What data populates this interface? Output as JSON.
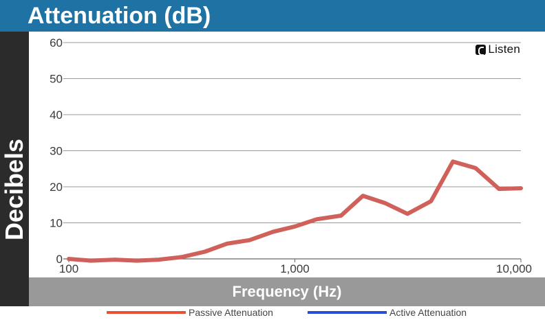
{
  "header": {
    "title": "Attenuation (dB)"
  },
  "brand": {
    "name": "Listen"
  },
  "chart_data": {
    "type": "line",
    "title": "Attenuation (dB)",
    "xlabel": "Frequency (Hz)",
    "ylabel": "Decibels",
    "xscale": "log",
    "xlim": [
      100,
      10000
    ],
    "ylim": [
      0,
      60
    ],
    "yticks": [
      0,
      10,
      20,
      30,
      40,
      50,
      60
    ],
    "xticks": [
      100,
      1000,
      10000
    ],
    "xtick_labels": [
      "100",
      "1,000",
      "10,000"
    ],
    "grid": "horizontal",
    "legend_position": "bottom",
    "series": [
      {
        "name": "Passive Attenuation",
        "color": "#d0605a",
        "x": [
          100,
          125,
          160,
          200,
          250,
          315,
          400,
          500,
          630,
          800,
          1000,
          1250,
          1600,
          2000,
          2500,
          3150,
          4000,
          5000,
          6300,
          8000,
          10000
        ],
        "y": [
          0,
          -0.5,
          -0.2,
          -0.5,
          -0.2,
          0.5,
          2,
          4.2,
          5.2,
          7.5,
          9,
          11,
          12,
          17.5,
          15.5,
          12.5,
          16,
          27,
          25.2,
          19.4,
          19.6
        ]
      },
      {
        "name": "Active Attenuation",
        "color": "#2a4bd8",
        "x": [],
        "y": []
      }
    ],
    "legend": [
      {
        "label": "Passive Attenuation",
        "color": "#e8502f"
      },
      {
        "label": "Active Attenuation",
        "color": "#2a4bd8"
      }
    ]
  }
}
